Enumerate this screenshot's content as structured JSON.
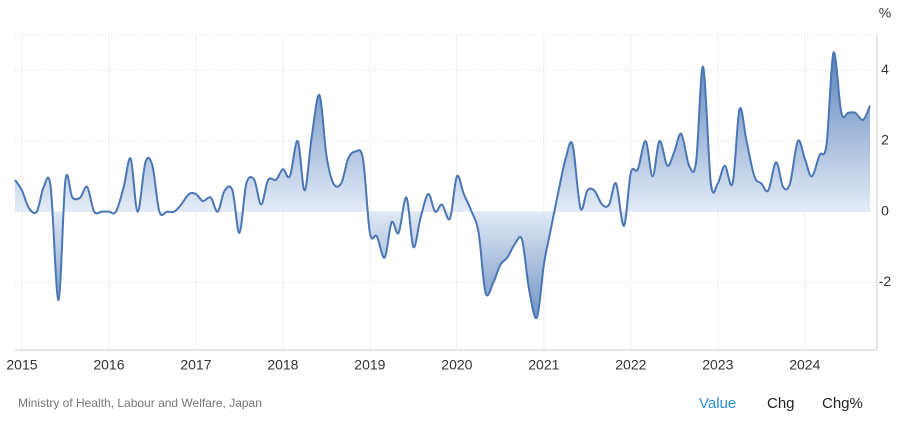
{
  "chart_data": {
    "type": "area",
    "y_unit": "%",
    "source": "Ministry of Health, Labour and Welfare, Japan",
    "buttons": [
      "Value",
      "Chg",
      "Chg%"
    ],
    "x": [
      2014.92,
      2015.0,
      2015.08,
      2015.17,
      2015.25,
      2015.33,
      2015.42,
      2015.5,
      2015.58,
      2015.67,
      2015.75,
      2015.83,
      2015.92,
      2016.0,
      2016.08,
      2016.17,
      2016.25,
      2016.33,
      2016.42,
      2016.5,
      2016.58,
      2016.67,
      2016.75,
      2016.83,
      2016.92,
      2017.0,
      2017.08,
      2017.17,
      2017.25,
      2017.33,
      2017.42,
      2017.5,
      2017.58,
      2017.67,
      2017.75,
      2017.83,
      2017.92,
      2018.0,
      2018.08,
      2018.17,
      2018.25,
      2018.33,
      2018.42,
      2018.5,
      2018.58,
      2018.67,
      2018.75,
      2018.83,
      2018.92,
      2019.0,
      2019.08,
      2019.17,
      2019.25,
      2019.33,
      2019.42,
      2019.5,
      2019.58,
      2019.67,
      2019.75,
      2019.83,
      2019.92,
      2020.0,
      2020.08,
      2020.17,
      2020.25,
      2020.33,
      2020.42,
      2020.5,
      2020.58,
      2020.67,
      2020.75,
      2020.83,
      2020.92,
      2021.0,
      2021.08,
      2021.17,
      2021.25,
      2021.33,
      2021.42,
      2021.5,
      2021.58,
      2021.67,
      2021.75,
      2021.83,
      2021.92,
      2022.0,
      2022.08,
      2022.17,
      2022.25,
      2022.33,
      2022.42,
      2022.5,
      2022.58,
      2022.67,
      2022.75,
      2022.83,
      2022.92,
      2023.0,
      2023.08,
      2023.17,
      2023.25,
      2023.33,
      2023.42,
      2023.5,
      2023.58,
      2023.67,
      2023.75,
      2023.83,
      2023.92,
      2024.0,
      2024.08,
      2024.17,
      2024.25,
      2024.33,
      2024.42,
      2024.5,
      2024.58,
      2024.67,
      2024.75
    ],
    "values": [
      0.9,
      0.6,
      0.1,
      0.0,
      0.7,
      0.7,
      -2.5,
      0.9,
      0.4,
      0.4,
      0.7,
      0.0,
      0.0,
      0.0,
      0.0,
      0.7,
      1.5,
      0.0,
      1.4,
      1.3,
      0.0,
      0.0,
      0.0,
      0.2,
      0.5,
      0.5,
      0.3,
      0.4,
      0.0,
      0.6,
      0.6,
      -0.6,
      0.8,
      0.9,
      0.2,
      0.9,
      0.9,
      1.2,
      1.0,
      2.0,
      0.6,
      2.1,
      3.3,
      1.6,
      0.8,
      0.8,
      1.5,
      1.7,
      1.5,
      -0.6,
      -0.7,
      -1.3,
      -0.3,
      -0.6,
      0.4,
      -1.0,
      -0.2,
      0.5,
      0.0,
      0.2,
      -0.2,
      1.0,
      0.5,
      0.0,
      -0.6,
      -2.3,
      -2.0,
      -1.5,
      -1.3,
      -0.9,
      -0.8,
      -2.2,
      -3.0,
      -1.5,
      -0.5,
      0.6,
      1.5,
      1.9,
      0.1,
      0.6,
      0.6,
      0.2,
      0.2,
      0.8,
      -0.4,
      1.1,
      1.2,
      2.0,
      1.0,
      2.0,
      1.3,
      1.7,
      2.2,
      1.3,
      1.4,
      4.1,
      0.8,
      0.8,
      1.3,
      0.8,
      2.9,
      2.0,
      1.0,
      0.8,
      0.6,
      1.4,
      0.7,
      0.8,
      2.0,
      1.5,
      1.0,
      1.6,
      1.9,
      4.5,
      2.8,
      2.8,
      2.8,
      2.6,
      3.0
    ],
    "color": "#4a77b4",
    "xlim": [
      2014.92,
      2024.83
    ],
    "xticks": [
      2015,
      2016,
      2017,
      2018,
      2019,
      2020,
      2021,
      2022,
      2023,
      2024
    ],
    "ylim": [
      -4,
      5
    ],
    "yticks": [
      -2,
      0,
      2,
      4
    ],
    "grid": true
  }
}
